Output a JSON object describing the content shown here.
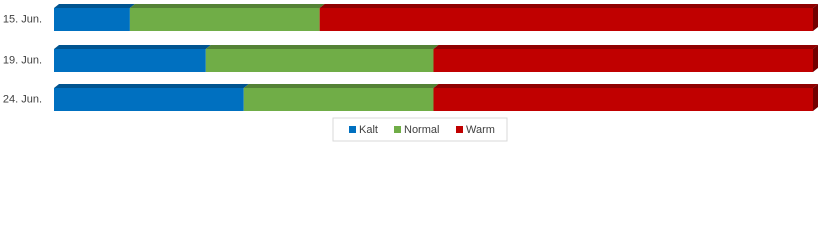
{
  "chart_data": {
    "type": "stacked-bar-100",
    "orientation": "horizontal",
    "categories": [
      "15. Jun.",
      "19. Jun.",
      "24. Jun."
    ],
    "series": [
      {
        "name": "Kalt",
        "color": "#0070c0",
        "values": [
          10,
          20,
          25
        ]
      },
      {
        "name": "Normal",
        "color": "#70ad47",
        "values": [
          25,
          30,
          25
        ]
      },
      {
        "name": "Warm",
        "color": "#c00000",
        "values": [
          65,
          50,
          50
        ]
      }
    ],
    "xlim": [
      0,
      100
    ],
    "legend": "bottom"
  }
}
